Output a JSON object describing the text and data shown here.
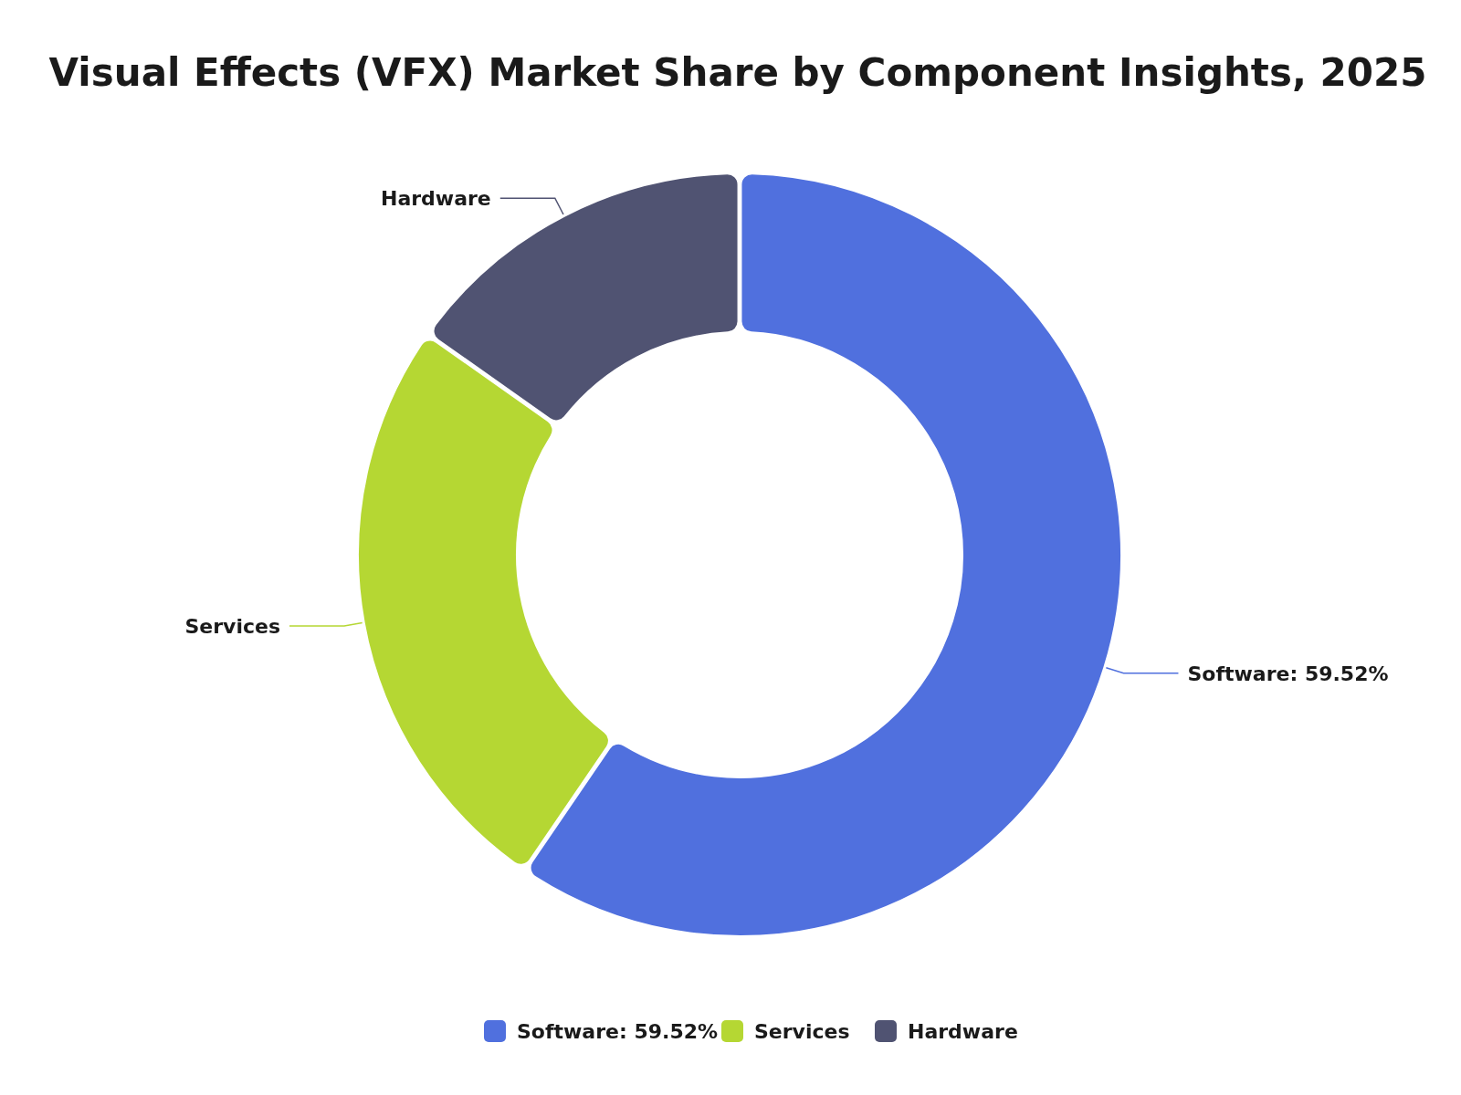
{
  "chart_data": {
    "type": "donut",
    "title": "Visual Effects (VFX) Market Share by Component Insights, 2025",
    "categories": [
      "Software: 59.52%",
      "Services",
      "Hardware"
    ],
    "values": [
      59.52,
      25.28,
      15.2
    ],
    "colors": [
      "#5070de",
      "#b5d733",
      "#505372"
    ],
    "legend": "bottom"
  }
}
